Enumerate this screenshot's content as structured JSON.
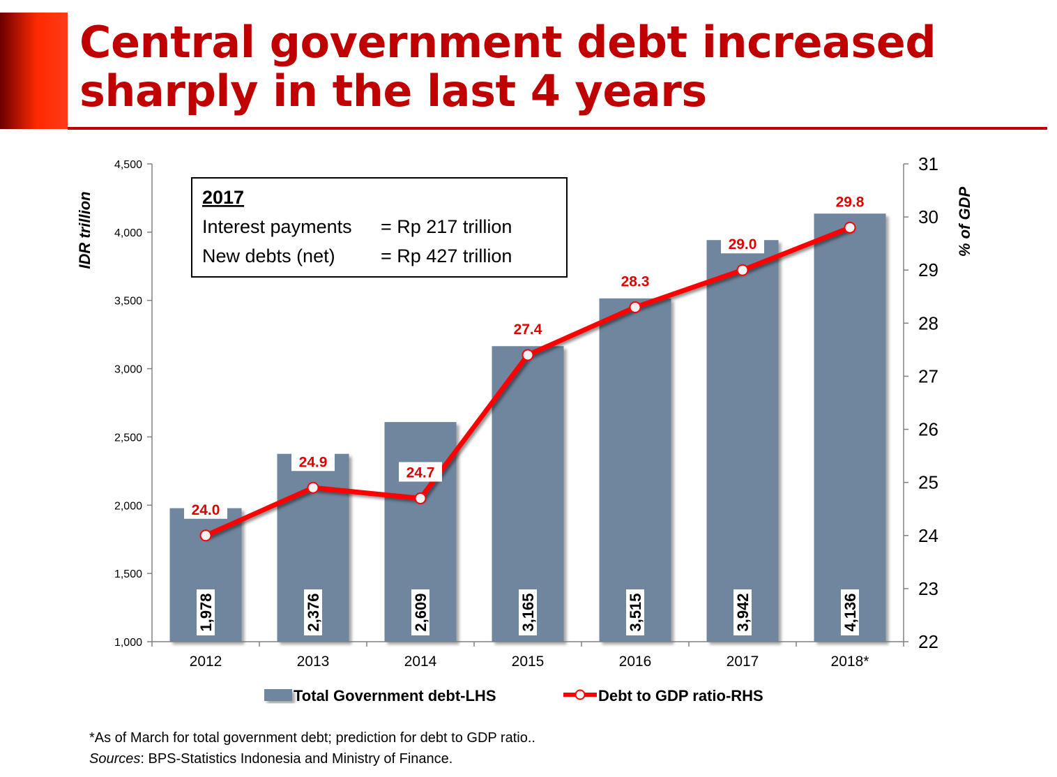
{
  "slide": {
    "title": "Central government debt increased sharply in the last 4 years"
  },
  "colors": {
    "title": "#c00000",
    "bar": "#6f869e",
    "line": "#ff0000",
    "line_label": "#e00000"
  },
  "textbox": {
    "heading": "2017",
    "line1_label": "Interest payments",
    "line1_value": "= Rp 217 trillion",
    "line2_label": "New debts (net)",
    "line2_value": "= Rp 427 trillion"
  },
  "chart_data": {
    "type": "bar",
    "categories": [
      "2012",
      "2013",
      "2014",
      "2015",
      "2016",
      "2017",
      "2018*"
    ],
    "series": [
      {
        "name": "Total Government debt-LHS",
        "type": "bar",
        "axis": "left",
        "values": [
          1978,
          2376,
          2609,
          3165,
          3515,
          3942,
          4136
        ],
        "labels": [
          "1,978",
          "2,376",
          "2,609",
          "3,165",
          "3,515",
          "3,942",
          "4,136"
        ]
      },
      {
        "name": "Debt to GDP ratio-RHS",
        "type": "line",
        "axis": "right",
        "values": [
          24.0,
          24.9,
          24.7,
          27.4,
          28.3,
          29.0,
          29.8
        ],
        "labels": [
          "24.0",
          "24.9",
          "24.7",
          "27.4",
          "28.3",
          "29.0",
          "29.8"
        ]
      }
    ],
    "ylabel": "IDR trillion",
    "ylabel_right": "% of GDP",
    "ylim": [
      1000,
      4500
    ],
    "ylim_right": [
      22,
      31
    ],
    "yticks": [
      "1,000",
      "1,500",
      "2,000",
      "2,500",
      "3,000",
      "3,500",
      "4,000",
      "4,500"
    ],
    "yticks_right": [
      "22",
      "23",
      "24",
      "25",
      "26",
      "27",
      "28",
      "29",
      "30",
      "31"
    ],
    "grid": false,
    "legend_position": "bottom"
  },
  "footnote": {
    "line1": "*As of March for total government debt; prediction for debt to GDP ratio..",
    "sources_label": "Sources",
    "sources_text": ": BPS-Statistics Indonesia and Ministry of Finance."
  }
}
